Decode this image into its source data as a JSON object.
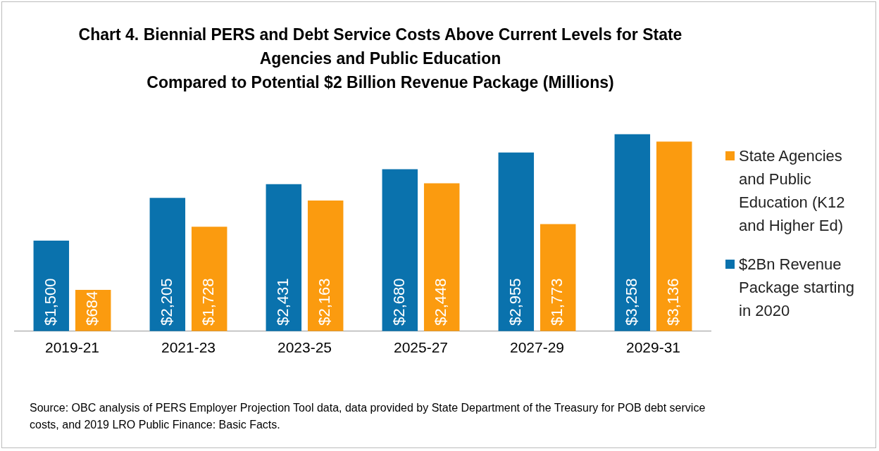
{
  "chart_data": {
    "type": "bar",
    "title": "Chart 4. Biennial PERS and Debt Service Costs Above Current Levels for State Agencies and Public Education\nCompared to Potential $2 Billion Revenue Package (Millions)",
    "categories": [
      "2019-21",
      "2021-23",
      "2023-25",
      "2025-27",
      "2027-29",
      "2029-31"
    ],
    "series": [
      {
        "name": "$2Bn Revenue Package starting in 2020",
        "color": "#0a72ad",
        "values": [
          1500,
          2205,
          2431,
          2680,
          2955,
          3258
        ],
        "value_labels": [
          "$1,500",
          "$2,205",
          "$2,431",
          "$2,680",
          "$2,955",
          "$3,258"
        ]
      },
      {
        "name": "State Agencies and Public Education (K12 and Higher Ed)",
        "color": "#fb9b0f",
        "values": [
          684,
          1728,
          2163,
          2448,
          1773,
          3136
        ],
        "value_labels": [
          "$684",
          "$1,728",
          "$2,163",
          "$2,448",
          "$1,773",
          "$3,136"
        ]
      }
    ],
    "legend": "right",
    "grid": false,
    "annotations": [
      "Source: OBC analysis of PERS Employer Projection Tool data, data provided by State Department of the Treasury for POB debt service costs, and 2019 LRO Public Finance: Basic Facts."
    ]
  }
}
